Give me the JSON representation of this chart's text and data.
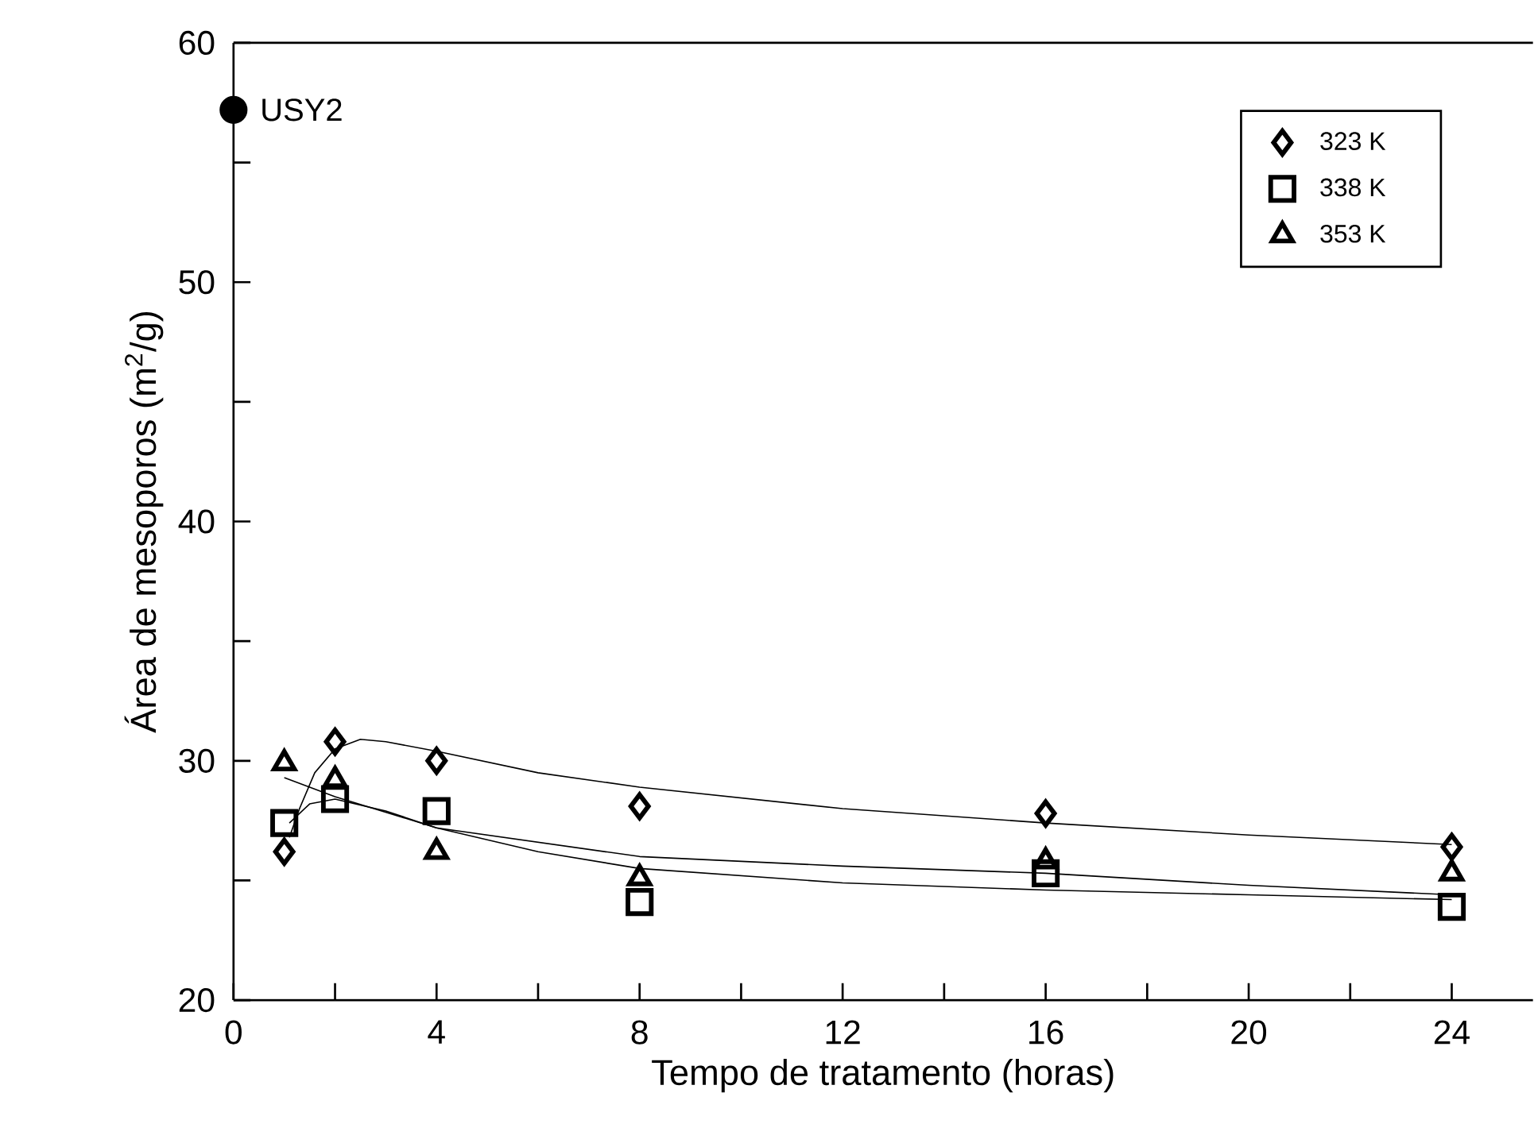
{
  "chart_data": {
    "type": "scatter",
    "xlabel": "Tempo de tratamento (horas)",
    "ylabel": "Área de mesoporos (m$^{2}$/g)",
    "xlim": [
      0,
      25.6
    ],
    "ylim": [
      20,
      60
    ],
    "xticks": [
      0,
      {
        "value": 2,
        "label": null
      },
      4,
      {
        "value": 6,
        "label": null
      },
      8,
      {
        "value": 10,
        "label": null
      },
      12,
      {
        "value": 14,
        "label": null
      },
      16,
      {
        "value": 18,
        "label": null
      },
      20,
      {
        "value": 22,
        "label": null
      },
      24
    ],
    "yticks": [
      20,
      {
        "value": 25,
        "label": null
      },
      30,
      {
        "value": 35,
        "label": null
      },
      40,
      {
        "value": 45,
        "label": null
      },
      50,
      {
        "value": 55,
        "label": null
      },
      60
    ],
    "grid": false,
    "legend": "top right",
    "series": [
      {
        "name": "323 K",
        "marker": "diamond",
        "color": "#000000",
        "x": [
          1,
          2,
          4,
          8,
          16,
          24
        ],
        "values": [
          26.2,
          30.8,
          30.0,
          28.1,
          27.8,
          26.4
        ]
      },
      {
        "name": "338 K",
        "marker": "square",
        "color": "#000000",
        "x": [
          1,
          2,
          4,
          8,
          16,
          24
        ],
        "values": [
          27.4,
          28.4,
          27.9,
          24.1,
          25.3,
          23.9
        ]
      },
      {
        "name": "353 K",
        "marker": "triangle",
        "color": "#000000",
        "x": [
          1,
          2,
          4,
          8,
          16,
          24
        ],
        "values": [
          29.9,
          29.2,
          26.2,
          25.1,
          25.8,
          25.3
        ]
      },
      {
        "marker": "circle",
        "color": "#000000",
        "x": [
          0
        ],
        "values": [
          57.2
        ]
      },
      {
        "type": "line",
        "marker": "none",
        "color": "#000000",
        "x": [
          1.1,
          1.3,
          1.6,
          2,
          2.5,
          3,
          4,
          6,
          8,
          12,
          16,
          20,
          24
        ],
        "values": [
          26.8,
          28.0,
          29.5,
          30.5,
          30.9,
          30.8,
          30.4,
          29.5,
          28.9,
          28.0,
          27.4,
          26.9,
          26.5
        ]
      },
      {
        "type": "line",
        "marker": "none",
        "color": "#000000",
        "x": [
          1,
          2,
          4,
          8,
          12,
          16,
          20,
          24
        ],
        "values": [
          29.3,
          28.5,
          27.2,
          26.0,
          25.6,
          25.3,
          24.8,
          24.4
        ]
      },
      {
        "type": "line",
        "marker": "none",
        "color": "#000000",
        "x": [
          1.1,
          1.5,
          2,
          3,
          4,
          6,
          8,
          12,
          16,
          20,
          24
        ],
        "values": [
          27.4,
          28.2,
          28.4,
          27.9,
          27.2,
          26.2,
          25.5,
          24.9,
          24.6,
          24.4,
          24.2
        ]
      }
    ],
    "annotations": [
      {
        "text": "USY2",
        "x": 0,
        "y": 57.2
      }
    ]
  }
}
